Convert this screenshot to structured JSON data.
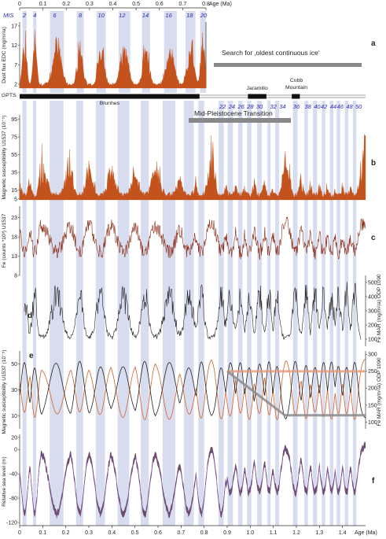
{
  "chart_data": {
    "type": "line",
    "top_axis": {
      "label": "Age (Ma)",
      "ticks": [
        "0",
        "0.1",
        "0.2",
        "0.3",
        "0.4",
        "0.5",
        "0.6",
        "0.7",
        "0.8"
      ],
      "xlim": [
        0,
        0.8
      ]
    },
    "bottom_axis": {
      "label": "Age (Ma)",
      "ticks": [
        "0",
        "0.1",
        "0.2",
        "0.3",
        "0.4",
        "0.5",
        "0.6",
        "0.7",
        "0.8",
        "0.9",
        "1.0",
        "1.1",
        "1.2",
        "1.3",
        "1.4"
      ],
      "xlim": [
        0,
        1.5
      ]
    },
    "mis": {
      "label": "MIS",
      "stages": [
        {
          "label": "2",
          "age": 0.02
        },
        {
          "label": "4",
          "age": 0.065
        },
        {
          "label": "6",
          "age": 0.15
        },
        {
          "label": "8",
          "age": 0.26
        },
        {
          "label": "10",
          "age": 0.35
        },
        {
          "label": "12",
          "age": 0.44
        },
        {
          "label": "14",
          "age": 0.54
        },
        {
          "label": "16",
          "age": 0.64
        },
        {
          "label": "18",
          "age": 0.73
        },
        {
          "label": "20",
          "age": 0.79
        },
        {
          "label": "22",
          "age": 0.88
        },
        {
          "label": "24",
          "age": 0.92
        },
        {
          "label": "26",
          "age": 0.96
        },
        {
          "label": "28",
          "age": 1.0
        },
        {
          "label": "30",
          "age": 1.04
        },
        {
          "label": "32",
          "age": 1.1
        },
        {
          "label": "34",
          "age": 1.14
        },
        {
          "label": "36",
          "age": 1.2
        },
        {
          "label": "38",
          "age": 1.25
        },
        {
          "label": "40",
          "age": 1.29
        },
        {
          "label": "42",
          "age": 1.32
        },
        {
          "label": "44",
          "age": 1.36
        },
        {
          "label": "46",
          "age": 1.39
        },
        {
          "label": "48",
          "age": 1.43
        },
        {
          "label": "50",
          "age": 1.47
        }
      ]
    },
    "glacial_bands": [
      [
        0.012,
        0.03
      ],
      [
        0.058,
        0.072
      ],
      [
        0.13,
        0.19
      ],
      [
        0.245,
        0.275
      ],
      [
        0.33,
        0.37
      ],
      [
        0.425,
        0.475
      ],
      [
        0.525,
        0.56
      ],
      [
        0.62,
        0.675
      ],
      [
        0.712,
        0.755
      ],
      [
        0.775,
        0.8
      ],
      [
        0.862,
        0.885
      ],
      [
        0.902,
        0.925
      ],
      [
        0.948,
        0.966
      ],
      [
        0.986,
        1.005
      ],
      [
        1.03,
        1.05
      ],
      [
        1.075,
        1.088
      ],
      [
        1.108,
        1.125
      ],
      [
        1.185,
        1.205
      ],
      [
        1.235,
        1.25
      ],
      [
        1.272,
        1.29
      ],
      [
        1.31,
        1.325
      ],
      [
        1.345,
        1.36
      ],
      [
        1.375,
        1.39
      ],
      [
        1.41,
        1.425
      ],
      [
        1.445,
        1.46
      ]
    ],
    "panels": [
      {
        "id": "a",
        "ylabel": "Dust flux EDC (mg/m²/a)",
        "yticks": [
          "17",
          "12",
          "7",
          "2"
        ],
        "ylim": [
          1,
          18
        ],
        "xlim": [
          0,
          0.8
        ],
        "color": "#c4521c"
      },
      {
        "id": "b",
        "ylabel": "Magnetic susceptibility U1537 (10⁻⁵)",
        "yticks": [
          "95",
          "75",
          "55",
          "35",
          "15",
          "5"
        ],
        "ylim": [
          4,
          100
        ],
        "color": "#c4521c"
      },
      {
        "id": "c",
        "ylabel": "Fe (counts *10³) U1537",
        "yticks": [
          "23",
          "18",
          "13",
          "8"
        ],
        "ylim": [
          8,
          26
        ],
        "color": "#8b2a14"
      },
      {
        "id": "d",
        "ylabel": "Fe MAR (mg/m²/a) ODP 1090",
        "yticks": [
          "500",
          "400",
          "300",
          "200",
          "100"
        ],
        "ylim": [
          50,
          550
        ],
        "color": "#222222"
      },
      {
        "id": "e",
        "ylabel": "Magnetic susceptibility U1537 (10⁻⁵)",
        "ylabel_right": "Fe MAR (mg/m²/a) ODP 1090",
        "yticks": [
          "50",
          "30",
          "10"
        ],
        "yticks_right": [
          "300",
          "250",
          "200",
          "150",
          "100"
        ],
        "ylim": [
          0,
          60
        ],
        "ylim_right": [
          80,
          310
        ],
        "series": [
          "susceptibility",
          "Fe MAR"
        ],
        "colors": [
          "#d4622a",
          "#222222"
        ]
      },
      {
        "id": "f",
        "ylabel": "Relative sea level (m)",
        "yticks": [
          "20",
          "0",
          "-40",
          "-80",
          "-120"
        ],
        "ylim": [
          -125,
          25
        ],
        "colors": [
          "#6a4a58",
          "#7a4fb0"
        ]
      }
    ],
    "gpts": {
      "label": "GPTS",
      "chrons": [
        {
          "name": "Brunhes",
          "start": 0,
          "end": 0.78
        },
        {
          "name": "Jaramillo",
          "start": 0.99,
          "end": 1.07
        },
        {
          "name": "Cobb Mountain",
          "start": 1.18,
          "end": 1.215
        }
      ]
    },
    "annotations": {
      "oldest_ice": "Search for ‚oldest continuous ice‘",
      "mpt": "Mid-Pleistocene Transition"
    },
    "fe_mar_levels": {
      "early": 250,
      "late": 120,
      "transition_start": 0.9,
      "transition_end": 1.15
    }
  }
}
